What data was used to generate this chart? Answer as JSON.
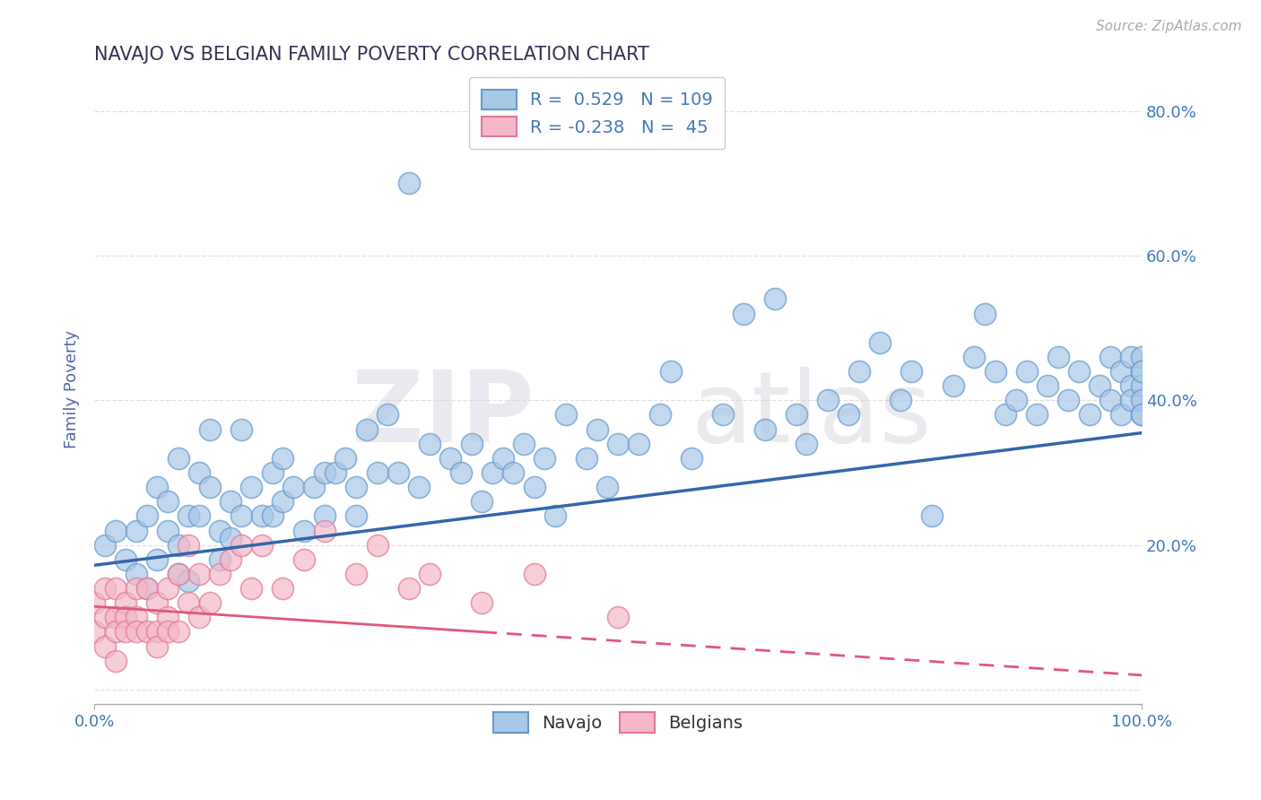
{
  "title": "NAVAJO VS BELGIAN FAMILY POVERTY CORRELATION CHART",
  "source_text": "Source: ZipAtlas.com",
  "ylabel": "Family Poverty",
  "watermark_zip": "ZIP",
  "watermark_atlas": "atlas",
  "x_min": 0.0,
  "x_max": 1.0,
  "y_min": -0.02,
  "y_max": 0.85,
  "navajo_R": 0.529,
  "navajo_N": 109,
  "belgian_R": -0.238,
  "belgian_N": 45,
  "navajo_color": "#a8c8e8",
  "navajo_edge_color": "#6699cc",
  "navajo_line_color": "#3366aa",
  "belgian_color": "#f5b8c8",
  "belgian_edge_color": "#e07898",
  "belgian_line_color": "#e05878",
  "title_color": "#333355",
  "axis_label_color": "#5566aa",
  "tick_label_color": "#4477bb",
  "grid_color": "#dddddd",
  "background_color": "#ffffff",
  "navajo_line_start_y": 0.172,
  "navajo_line_end_y": 0.355,
  "belgian_line_start_y": 0.115,
  "belgian_line_end_y": 0.02,
  "navajo_x": [
    0.01,
    0.02,
    0.03,
    0.04,
    0.04,
    0.05,
    0.05,
    0.06,
    0.06,
    0.07,
    0.07,
    0.08,
    0.08,
    0.08,
    0.09,
    0.09,
    0.1,
    0.1,
    0.11,
    0.11,
    0.12,
    0.12,
    0.13,
    0.13,
    0.14,
    0.14,
    0.15,
    0.16,
    0.17,
    0.17,
    0.18,
    0.18,
    0.19,
    0.2,
    0.21,
    0.22,
    0.22,
    0.23,
    0.24,
    0.25,
    0.25,
    0.26,
    0.27,
    0.28,
    0.29,
    0.3,
    0.31,
    0.32,
    0.34,
    0.35,
    0.36,
    0.37,
    0.38,
    0.39,
    0.4,
    0.41,
    0.42,
    0.43,
    0.44,
    0.45,
    0.47,
    0.48,
    0.49,
    0.5,
    0.52,
    0.54,
    0.55,
    0.57,
    0.6,
    0.62,
    0.64,
    0.65,
    0.67,
    0.68,
    0.7,
    0.72,
    0.73,
    0.75,
    0.77,
    0.78,
    0.8,
    0.82,
    0.84,
    0.85,
    0.86,
    0.87,
    0.88,
    0.89,
    0.9,
    0.91,
    0.92,
    0.93,
    0.94,
    0.95,
    0.96,
    0.97,
    0.97,
    0.98,
    0.98,
    0.99,
    0.99,
    0.99,
    1.0,
    1.0,
    1.0,
    1.0,
    1.0,
    1.0,
    1.0
  ],
  "navajo_y": [
    0.2,
    0.22,
    0.18,
    0.22,
    0.16,
    0.24,
    0.14,
    0.28,
    0.18,
    0.22,
    0.26,
    0.16,
    0.32,
    0.2,
    0.24,
    0.15,
    0.3,
    0.24,
    0.28,
    0.36,
    0.22,
    0.18,
    0.26,
    0.21,
    0.36,
    0.24,
    0.28,
    0.24,
    0.24,
    0.3,
    0.26,
    0.32,
    0.28,
    0.22,
    0.28,
    0.3,
    0.24,
    0.3,
    0.32,
    0.28,
    0.24,
    0.36,
    0.3,
    0.38,
    0.3,
    0.7,
    0.28,
    0.34,
    0.32,
    0.3,
    0.34,
    0.26,
    0.3,
    0.32,
    0.3,
    0.34,
    0.28,
    0.32,
    0.24,
    0.38,
    0.32,
    0.36,
    0.28,
    0.34,
    0.34,
    0.38,
    0.44,
    0.32,
    0.38,
    0.52,
    0.36,
    0.54,
    0.38,
    0.34,
    0.4,
    0.38,
    0.44,
    0.48,
    0.4,
    0.44,
    0.24,
    0.42,
    0.46,
    0.52,
    0.44,
    0.38,
    0.4,
    0.44,
    0.38,
    0.42,
    0.46,
    0.4,
    0.44,
    0.38,
    0.42,
    0.46,
    0.4,
    0.44,
    0.38,
    0.42,
    0.46,
    0.4,
    0.44,
    0.38,
    0.42,
    0.46,
    0.4,
    0.44,
    0.38
  ],
  "belgian_x": [
    0.0,
    0.0,
    0.01,
    0.01,
    0.01,
    0.02,
    0.02,
    0.02,
    0.02,
    0.03,
    0.03,
    0.03,
    0.04,
    0.04,
    0.04,
    0.05,
    0.05,
    0.06,
    0.06,
    0.06,
    0.07,
    0.07,
    0.07,
    0.08,
    0.08,
    0.09,
    0.09,
    0.1,
    0.1,
    0.11,
    0.12,
    0.13,
    0.14,
    0.15,
    0.16,
    0.18,
    0.2,
    0.22,
    0.25,
    0.27,
    0.3,
    0.32,
    0.37,
    0.42,
    0.5
  ],
  "belgian_y": [
    0.12,
    0.08,
    0.14,
    0.1,
    0.06,
    0.1,
    0.14,
    0.08,
    0.04,
    0.12,
    0.1,
    0.08,
    0.14,
    0.1,
    0.08,
    0.14,
    0.08,
    0.12,
    0.08,
    0.06,
    0.14,
    0.1,
    0.08,
    0.16,
    0.08,
    0.12,
    0.2,
    0.1,
    0.16,
    0.12,
    0.16,
    0.18,
    0.2,
    0.14,
    0.2,
    0.14,
    0.18,
    0.22,
    0.16,
    0.2,
    0.14,
    0.16,
    0.12,
    0.16,
    0.1
  ]
}
